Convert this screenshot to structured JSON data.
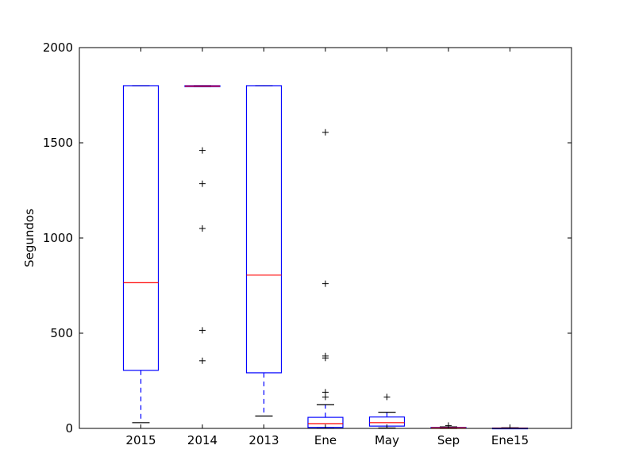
{
  "chart_data": {
    "type": "boxplot",
    "ylabel": "Segundos",
    "ylim": [
      0,
      2000
    ],
    "yticks": [
      0,
      500,
      1000,
      1500,
      2000
    ],
    "categories": [
      "2015",
      "2014",
      "2013",
      "Ene",
      "May",
      "Sep",
      "Ene15"
    ],
    "boxes": [
      {
        "category": "2015",
        "whisker_low": 30,
        "q1": 305,
        "median": 765,
        "q3": 1800,
        "whisker_high": 1800,
        "outliers": []
      },
      {
        "category": "2014",
        "whisker_low": 1795,
        "q1": 1795,
        "median": 1798,
        "q3": 1800,
        "whisker_high": 1800,
        "outliers": [
          1460,
          1285,
          1050,
          515,
          355
        ]
      },
      {
        "category": "2013",
        "whisker_low": 65,
        "q1": 292,
        "median": 805,
        "q3": 1800,
        "whisker_high": 1800,
        "outliers": []
      },
      {
        "category": "Ene",
        "whisker_low": 2,
        "q1": 5,
        "median": 25,
        "q3": 58,
        "whisker_high": 125,
        "outliers": [
          1555,
          760,
          380,
          370,
          190,
          165
        ]
      },
      {
        "category": "May",
        "whisker_low": 2,
        "q1": 12,
        "median": 30,
        "q3": 60,
        "whisker_high": 85,
        "outliers": [
          165
        ]
      },
      {
        "category": "Sep",
        "whisker_low": 0,
        "q1": 1,
        "median": 3,
        "q3": 5,
        "whisker_high": 8,
        "outliers": [
          15
        ]
      },
      {
        "category": "Ene15",
        "whisker_low": 0,
        "q1": 0.5,
        "median": 1,
        "q3": 2,
        "whisker_high": 3,
        "outliers": []
      }
    ],
    "colors": {
      "box": "#0000ff",
      "median": "#ff0000",
      "whisker": "#0000ff",
      "cap": "#000000",
      "outlier": "#000000"
    },
    "grid": false,
    "legend": "none"
  }
}
